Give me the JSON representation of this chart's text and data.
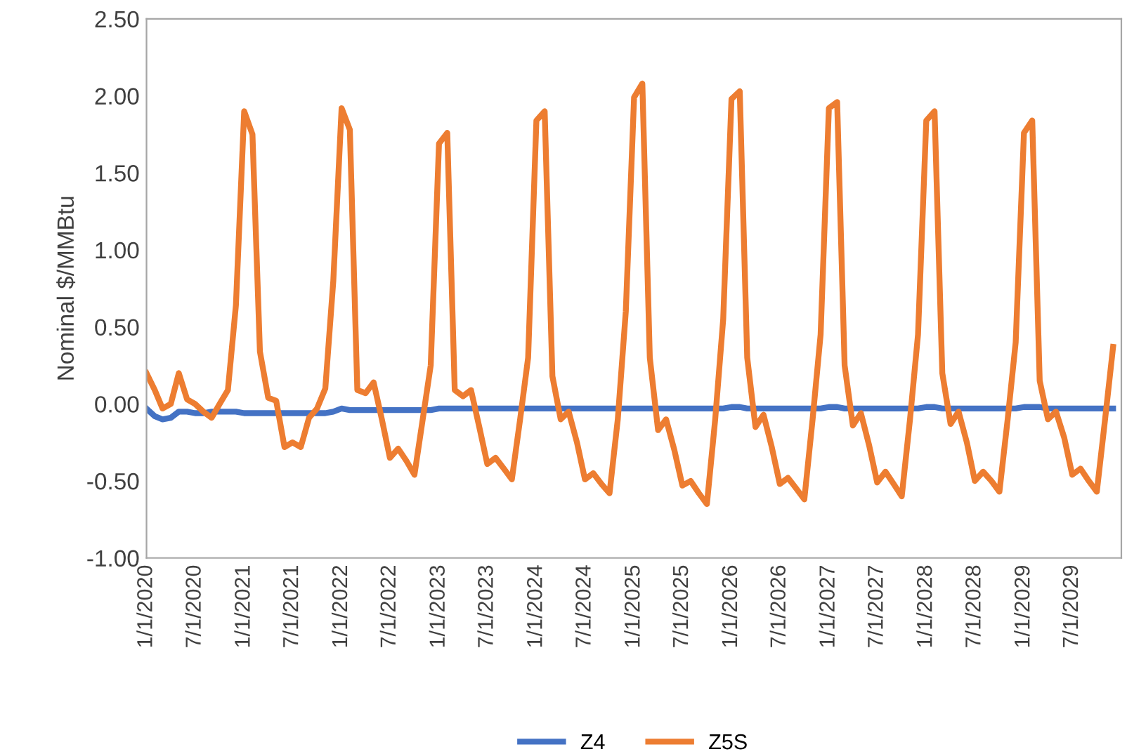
{
  "chart_data": {
    "type": "line",
    "ylabel": "Nominal $/MMBtu",
    "legend": "bottom",
    "grid": false,
    "marker": "none",
    "line_style": "solid",
    "x": [
      "2020-01",
      "2020-02",
      "2020-03",
      "2020-04",
      "2020-05",
      "2020-06",
      "2020-07",
      "2020-08",
      "2020-09",
      "2020-10",
      "2020-11",
      "2020-12",
      "2021-01",
      "2021-02",
      "2021-03",
      "2021-04",
      "2021-05",
      "2021-06",
      "2021-07",
      "2021-08",
      "2021-09",
      "2021-10",
      "2021-11",
      "2021-12",
      "2022-01",
      "2022-02",
      "2022-03",
      "2022-04",
      "2022-05",
      "2022-06",
      "2022-07",
      "2022-08",
      "2022-09",
      "2022-10",
      "2022-11",
      "2022-12",
      "2023-01",
      "2023-02",
      "2023-03",
      "2023-04",
      "2023-05",
      "2023-06",
      "2023-07",
      "2023-08",
      "2023-09",
      "2023-10",
      "2023-11",
      "2023-12",
      "2024-01",
      "2024-02",
      "2024-03",
      "2024-04",
      "2024-05",
      "2024-06",
      "2024-07",
      "2024-08",
      "2024-09",
      "2024-10",
      "2024-11",
      "2024-12",
      "2025-01",
      "2025-02",
      "2025-03",
      "2025-04",
      "2025-05",
      "2025-06",
      "2025-07",
      "2025-08",
      "2025-09",
      "2025-10",
      "2025-11",
      "2025-12",
      "2026-01",
      "2026-02",
      "2026-03",
      "2026-04",
      "2026-05",
      "2026-06",
      "2026-07",
      "2026-08",
      "2026-09",
      "2026-10",
      "2026-11",
      "2026-12",
      "2027-01",
      "2027-02",
      "2027-03",
      "2027-04",
      "2027-05",
      "2027-06",
      "2027-07",
      "2027-08",
      "2027-09",
      "2027-10",
      "2027-11",
      "2027-12",
      "2028-01",
      "2028-02",
      "2028-03",
      "2028-04",
      "2028-05",
      "2028-06",
      "2028-07",
      "2028-08",
      "2028-09",
      "2028-10",
      "2028-11",
      "2028-12",
      "2029-01",
      "2029-02",
      "2029-03",
      "2029-04",
      "2029-05",
      "2029-06",
      "2029-07",
      "2029-08",
      "2029-09",
      "2029-10",
      "2029-11",
      "2029-12"
    ],
    "series": [
      {
        "name": "Z4",
        "color": "#4472c4",
        "values": [
          -0.03,
          -0.08,
          -0.1,
          -0.09,
          -0.05,
          -0.05,
          -0.06,
          -0.06,
          -0.05,
          -0.05,
          -0.05,
          -0.05,
          -0.06,
          -0.06,
          -0.06,
          -0.06,
          -0.06,
          -0.06,
          -0.06,
          -0.06,
          -0.06,
          -0.06,
          -0.06,
          -0.05,
          -0.03,
          -0.04,
          -0.04,
          -0.04,
          -0.04,
          -0.04,
          -0.04,
          -0.04,
          -0.04,
          -0.04,
          -0.04,
          -0.04,
          -0.03,
          -0.03,
          -0.03,
          -0.03,
          -0.03,
          -0.03,
          -0.03,
          -0.03,
          -0.03,
          -0.03,
          -0.03,
          -0.03,
          -0.03,
          -0.03,
          -0.03,
          -0.03,
          -0.03,
          -0.03,
          -0.03,
          -0.03,
          -0.03,
          -0.03,
          -0.03,
          -0.03,
          -0.03,
          -0.03,
          -0.03,
          -0.03,
          -0.03,
          -0.03,
          -0.03,
          -0.03,
          -0.03,
          -0.03,
          -0.03,
          -0.03,
          -0.02,
          -0.02,
          -0.03,
          -0.03,
          -0.03,
          -0.03,
          -0.03,
          -0.03,
          -0.03,
          -0.03,
          -0.03,
          -0.03,
          -0.02,
          -0.02,
          -0.03,
          -0.03,
          -0.03,
          -0.03,
          -0.03,
          -0.03,
          -0.03,
          -0.03,
          -0.03,
          -0.03,
          -0.02,
          -0.02,
          -0.03,
          -0.03,
          -0.03,
          -0.03,
          -0.03,
          -0.03,
          -0.03,
          -0.03,
          -0.03,
          -0.03,
          -0.02,
          -0.02,
          -0.02,
          -0.03,
          -0.03,
          -0.03,
          -0.03,
          -0.03,
          -0.03,
          -0.03,
          -0.03,
          -0.03
        ]
      },
      {
        "name": "Z5S",
        "color": "#ed7d31",
        "values": [
          0.2,
          0.09,
          -0.03,
          0.0,
          0.2,
          0.03,
          0.0,
          -0.05,
          -0.09,
          0.0,
          0.09,
          0.64,
          1.9,
          1.75,
          0.34,
          0.04,
          0.02,
          -0.28,
          -0.25,
          -0.28,
          -0.09,
          -0.03,
          0.1,
          0.8,
          1.92,
          1.78,
          0.09,
          0.07,
          0.14,
          -0.1,
          -0.35,
          -0.29,
          -0.37,
          -0.46,
          -0.1,
          0.25,
          1.69,
          1.76,
          0.09,
          0.05,
          0.09,
          -0.15,
          -0.39,
          -0.35,
          -0.42,
          -0.49,
          -0.1,
          0.3,
          1.84,
          1.9,
          0.18,
          -0.1,
          -0.05,
          -0.25,
          -0.49,
          -0.45,
          -0.52,
          -0.58,
          -0.1,
          0.6,
          1.99,
          2.08,
          0.3,
          -0.17,
          -0.1,
          -0.3,
          -0.53,
          -0.5,
          -0.58,
          -0.65,
          -0.1,
          0.55,
          1.98,
          2.03,
          0.3,
          -0.15,
          -0.07,
          -0.28,
          -0.52,
          -0.48,
          -0.55,
          -0.62,
          -0.1,
          0.45,
          1.92,
          1.96,
          0.25,
          -0.14,
          -0.06,
          -0.27,
          -0.51,
          -0.44,
          -0.52,
          -0.6,
          -0.1,
          0.45,
          1.84,
          1.9,
          0.2,
          -0.13,
          -0.05,
          -0.25,
          -0.5,
          -0.44,
          -0.5,
          -0.57,
          -0.1,
          0.4,
          1.76,
          1.84,
          0.15,
          -0.1,
          -0.05,
          -0.22,
          -0.46,
          -0.42,
          -0.5,
          -0.57,
          -0.1,
          0.37
        ]
      }
    ],
    "xlim": [
      "2020-01-01",
      "2030-01-01"
    ],
    "xticks": [
      {
        "value": "2020-01-01",
        "label": "1/1/2020"
      },
      {
        "value": "2020-07-01",
        "label": "7/1/2020"
      },
      {
        "value": "2021-01-01",
        "label": "1/1/2021"
      },
      {
        "value": "2021-07-01",
        "label": "7/1/2021"
      },
      {
        "value": "2022-01-01",
        "label": "1/1/2022"
      },
      {
        "value": "2022-07-01",
        "label": "7/1/2022"
      },
      {
        "value": "2023-01-01",
        "label": "1/1/2023"
      },
      {
        "value": "2023-07-01",
        "label": "7/1/2023"
      },
      {
        "value": "2024-01-01",
        "label": "1/1/2024"
      },
      {
        "value": "2024-07-01",
        "label": "7/1/2024"
      },
      {
        "value": "2025-01-01",
        "label": "1/1/2025"
      },
      {
        "value": "2025-07-01",
        "label": "7/1/2025"
      },
      {
        "value": "2026-01-01",
        "label": "1/1/2026"
      },
      {
        "value": "2026-07-01",
        "label": "7/1/2026"
      },
      {
        "value": "2027-01-01",
        "label": "1/1/2027"
      },
      {
        "value": "2027-07-01",
        "label": "7/1/2027"
      },
      {
        "value": "2028-01-01",
        "label": "1/1/2028"
      },
      {
        "value": "2028-07-01",
        "label": "7/1/2028"
      },
      {
        "value": "2029-01-01",
        "label": "1/1/2029"
      },
      {
        "value": "2029-07-01",
        "label": "7/1/2029"
      }
    ],
    "ylim": [
      -1.0,
      2.5
    ],
    "yticks": [
      {
        "value": -1.0,
        "label": "-1.00"
      },
      {
        "value": -0.5,
        "label": "-0.50"
      },
      {
        "value": 0.0,
        "label": "0.00"
      },
      {
        "value": 0.5,
        "label": "0.50"
      },
      {
        "value": 1.0,
        "label": "1.00"
      },
      {
        "value": 1.5,
        "label": "1.50"
      },
      {
        "value": 2.0,
        "label": "2.00"
      },
      {
        "value": 2.5,
        "label": "2.50"
      }
    ]
  }
}
